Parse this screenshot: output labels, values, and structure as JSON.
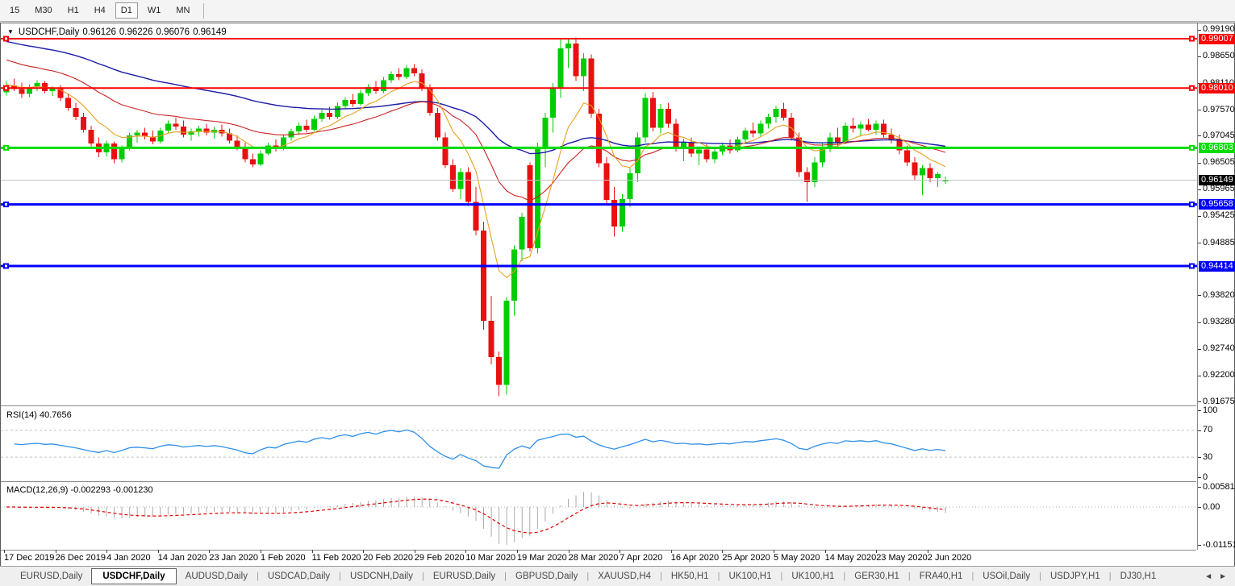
{
  "toolbar": {
    "timeframes": [
      "15",
      "M30",
      "H1",
      "H4",
      "D1",
      "W1",
      "MN"
    ],
    "active_timeframe": "D1"
  },
  "chart_header": {
    "dropdown_icon": "▼",
    "symbol": "USDCHF,Daily",
    "open": "0.96126",
    "high": "0.96226",
    "low": "0.96076",
    "close": "0.96149"
  },
  "rsi_panel": {
    "label": "RSI(14) 40.7656",
    "ticks": [
      "100",
      "70",
      "30",
      "0"
    ],
    "levels": [
      70,
      30
    ]
  },
  "macd_panel": {
    "label": "MACD(12,26,9) -0.002293 -0.001230",
    "ticks": [
      "0.005818",
      "0.00",
      "-0.011514"
    ]
  },
  "tabs": {
    "items": [
      "EURUSD,Daily",
      "USDCHF,Daily",
      "AUDUSD,Daily",
      "USDCAD,Daily",
      "USDCNH,Daily",
      "EURUSD,Daily",
      "GBPUSD,Daily",
      "XAUUSD,H4",
      "HK50,H1",
      "UK100,H1",
      "UK100,H1",
      "GER30,H1",
      "FRA40,H1",
      "USOil,Daily",
      "USDJPY,H1",
      "DJ30,H1"
    ],
    "active_index": 1,
    "nav_left": "◄",
    "nav_right": "►"
  },
  "chart_data": {
    "type": "candlestick",
    "title": "USDCHF,Daily",
    "price_ticks": [
      "0.99190",
      "0.98650",
      "0.98110",
      "0.97570",
      "0.97045",
      "0.96505",
      "0.95965",
      "0.95425",
      "0.94885",
      "0.93820",
      "0.93280",
      "0.92740",
      "0.92200",
      "0.91675"
    ],
    "x_labels": [
      "17 Dec 2019",
      "26 Dec 2019",
      "4 Jan 2020",
      "14 Jan 2020",
      "23 Jan 2020",
      "1 Feb 2020",
      "11 Feb 2020",
      "20 Feb 2020",
      "29 Feb 2020",
      "10 Mar 2020",
      "19 Mar 2020",
      "28 Mar 2020",
      "7 Apr 2020",
      "16 Apr 2020",
      "25 Apr 2020",
      "5 May 2020",
      "14 May 2020",
      "23 May 2020",
      "2 Jun 2020"
    ],
    "hlines": [
      {
        "price": 0.99007,
        "label": "0.99007",
        "color": "#FF0000",
        "type": "resistance",
        "width": 2
      },
      {
        "price": 0.9801,
        "label": "0.98010",
        "color": "#FF0000",
        "type": "resistance",
        "width": 2
      },
      {
        "price": 0.96803,
        "label": "0.96803",
        "color": "#00DC00",
        "type": "pivot",
        "width": 3
      },
      {
        "price": 0.95658,
        "label": "0.95658",
        "color": "#0000FF",
        "type": "support",
        "width": 3
      },
      {
        "price": 0.94414,
        "label": "0.94414",
        "color": "#0000FF",
        "type": "support",
        "width": 3
      }
    ],
    "current_price": {
      "value": 0.96149,
      "label": "0.96149",
      "line_color": "#C0C0C0",
      "label_bg": "#000000"
    },
    "colors": {
      "up": "#00CC00",
      "down": "#E81010",
      "ma_fast_orange": "#E8A020",
      "ma_mid_red": "#CC2222",
      "ma_slow_blue": "#1C1CA8",
      "rsi_line": "#2E8FE8",
      "rsi_level_dash": "#c4c4c4",
      "macd_hist": "#ABABAB",
      "macd_signal": "#E00000"
    },
    "ma": [
      {
        "name": "slow",
        "period": 60,
        "seed": 0.9898,
        "color_key": "ma_slow_blue"
      },
      {
        "name": "mid",
        "period": 25,
        "seed": 0.9862,
        "color_key": "ma_mid_red"
      },
      {
        "name": "fast",
        "period": 8,
        "seed": 0.9808,
        "color_key": "ma_fast_orange"
      }
    ],
    "rsi_period": 14,
    "macd_params": [
      12,
      26,
      9
    ],
    "candles": [
      [
        0.9792,
        0.9815,
        0.9786,
        0.9806
      ],
      [
        0.9806,
        0.982,
        0.9795,
        0.9799
      ],
      [
        0.9799,
        0.9812,
        0.9781,
        0.9789
      ],
      [
        0.9789,
        0.9809,
        0.9783,
        0.9803
      ],
      [
        0.9803,
        0.9817,
        0.9795,
        0.9811
      ],
      [
        0.9811,
        0.9815,
        0.9791,
        0.9795
      ],
      [
        0.9795,
        0.9805,
        0.9785,
        0.9801
      ],
      [
        0.9801,
        0.9807,
        0.9775,
        0.9781
      ],
      [
        0.9781,
        0.979,
        0.9755,
        0.9761
      ],
      [
        0.9761,
        0.9771,
        0.9736,
        0.9743
      ],
      [
        0.9743,
        0.9751,
        0.9711,
        0.9717
      ],
      [
        0.9717,
        0.9725,
        0.9683,
        0.9689
      ],
      [
        0.9689,
        0.9701,
        0.9661,
        0.9671
      ],
      [
        0.9671,
        0.9695,
        0.9663,
        0.9689
      ],
      [
        0.9689,
        0.9693,
        0.9649,
        0.9657
      ],
      [
        0.9657,
        0.9685,
        0.9651,
        0.9679
      ],
      [
        0.9679,
        0.9711,
        0.9675,
        0.9705
      ],
      [
        0.9705,
        0.9717,
        0.9691,
        0.9711
      ],
      [
        0.9711,
        0.9721,
        0.9697,
        0.9703
      ],
      [
        0.9703,
        0.9715,
        0.9687,
        0.9693
      ],
      [
        0.9693,
        0.9721,
        0.9689,
        0.9715
      ],
      [
        0.9715,
        0.9735,
        0.9709,
        0.9729
      ],
      [
        0.9729,
        0.9741,
        0.9717,
        0.9723
      ],
      [
        0.9723,
        0.9735,
        0.9701,
        0.9707
      ],
      [
        0.9707,
        0.9719,
        0.9695,
        0.9713
      ],
      [
        0.9713,
        0.9725,
        0.9703,
        0.9719
      ],
      [
        0.9719,
        0.9729,
        0.9705,
        0.9711
      ],
      [
        0.9711,
        0.9723,
        0.9699,
        0.9717
      ],
      [
        0.9717,
        0.9727,
        0.9703,
        0.9709
      ],
      [
        0.9709,
        0.9719,
        0.9689,
        0.9695
      ],
      [
        0.9695,
        0.9705,
        0.9675,
        0.9681
      ],
      [
        0.9681,
        0.9691,
        0.9651,
        0.9657
      ],
      [
        0.9657,
        0.9669,
        0.9641,
        0.9647
      ],
      [
        0.9647,
        0.9675,
        0.9643,
        0.9669
      ],
      [
        0.9669,
        0.9691,
        0.9665,
        0.9685
      ],
      [
        0.9685,
        0.9697,
        0.9673,
        0.9679
      ],
      [
        0.9679,
        0.9707,
        0.9675,
        0.9701
      ],
      [
        0.9701,
        0.9719,
        0.9695,
        0.9713
      ],
      [
        0.9713,
        0.9731,
        0.9707,
        0.9725
      ],
      [
        0.9725,
        0.9737,
        0.9711,
        0.9717
      ],
      [
        0.9717,
        0.9745,
        0.9713,
        0.9739
      ],
      [
        0.9739,
        0.9757,
        0.9733,
        0.9751
      ],
      [
        0.9751,
        0.9763,
        0.9737,
        0.9743
      ],
      [
        0.9743,
        0.9771,
        0.9739,
        0.9765
      ],
      [
        0.9765,
        0.9783,
        0.9759,
        0.9777
      ],
      [
        0.9777,
        0.9789,
        0.9763,
        0.9769
      ],
      [
        0.9769,
        0.9797,
        0.9765,
        0.9791
      ],
      [
        0.9791,
        0.9809,
        0.9785,
        0.9803
      ],
      [
        0.9803,
        0.9815,
        0.9789,
        0.9795
      ],
      [
        0.9795,
        0.9823,
        0.9791,
        0.9817
      ],
      [
        0.9817,
        0.9835,
        0.9811,
        0.9829
      ],
      [
        0.9829,
        0.9841,
        0.9817,
        0.9823
      ],
      [
        0.9823,
        0.9847,
        0.9819,
        0.9841
      ],
      [
        0.9841,
        0.9849,
        0.9825,
        0.9831
      ],
      [
        0.9831,
        0.9839,
        0.9795,
        0.9801
      ],
      [
        0.9801,
        0.9809,
        0.9745,
        0.9751
      ],
      [
        0.9751,
        0.9761,
        0.9695,
        0.9701
      ],
      [
        0.9701,
        0.9711,
        0.9639,
        0.9645
      ],
      [
        0.9645,
        0.9657,
        0.9591,
        0.9597
      ],
      [
        0.9597,
        0.9639,
        0.9577,
        0.9631
      ],
      [
        0.9631,
        0.9641,
        0.9563,
        0.9571
      ],
      [
        0.9571,
        0.9601,
        0.9503,
        0.9513
      ],
      [
        0.9513,
        0.9531,
        0.9313,
        0.9331
      ],
      [
        0.9331,
        0.9381,
        0.9243,
        0.9257
      ],
      [
        0.9257,
        0.9269,
        0.9178,
        0.9201
      ],
      [
        0.9201,
        0.9379,
        0.9182,
        0.9371
      ],
      [
        0.9371,
        0.9483,
        0.9341,
        0.9475
      ],
      [
        0.9475,
        0.9549,
        0.9451,
        0.9541
      ],
      [
        0.9645,
        0.9651,
        0.9471,
        0.9477
      ],
      [
        0.9477,
        0.9691,
        0.9467,
        0.9681
      ],
      [
        0.9681,
        0.9751,
        0.9641,
        0.9741
      ],
      [
        0.9741,
        0.9811,
        0.9711,
        0.9801
      ],
      [
        0.9801,
        0.9901,
        0.9781,
        0.9881
      ],
      [
        0.9881,
        0.9899,
        0.9841,
        0.9891
      ],
      [
        0.9891,
        0.9903,
        0.9815,
        0.9825
      ],
      [
        0.9825,
        0.9871,
        0.9795,
        0.9861
      ],
      [
        0.9861,
        0.9869,
        0.9741,
        0.9749
      ],
      [
        0.9749,
        0.9759,
        0.9641,
        0.9649
      ],
      [
        0.9649,
        0.9661,
        0.9565,
        0.9575
      ],
      [
        0.9575,
        0.9601,
        0.9501,
        0.9521
      ],
      [
        0.9521,
        0.9587,
        0.9511,
        0.9577
      ],
      [
        0.9577,
        0.9639,
        0.9561,
        0.9629
      ],
      [
        0.9629,
        0.9711,
        0.9611,
        0.9701
      ],
      [
        0.9701,
        0.9791,
        0.9691,
        0.9781
      ],
      [
        0.9781,
        0.9793,
        0.9713,
        0.9721
      ],
      [
        0.9721,
        0.9769,
        0.9709,
        0.9759
      ],
      [
        0.9759,
        0.9771,
        0.9721,
        0.9729
      ],
      [
        0.9729,
        0.9739,
        0.9673,
        0.9681
      ],
      [
        0.9681,
        0.9699,
        0.9653,
        0.9691
      ],
      [
        0.9691,
        0.9701,
        0.9661,
        0.9669
      ],
      [
        0.9669,
        0.9683,
        0.9645,
        0.9677
      ],
      [
        0.9677,
        0.9687,
        0.9651,
        0.9657
      ],
      [
        0.9657,
        0.9679,
        0.9649,
        0.9673
      ],
      [
        0.9673,
        0.9691,
        0.9665,
        0.9685
      ],
      [
        0.9685,
        0.9697,
        0.9669,
        0.9675
      ],
      [
        0.9675,
        0.9703,
        0.9671,
        0.9697
      ],
      [
        0.9697,
        0.9721,
        0.9691,
        0.9715
      ],
      [
        0.9715,
        0.9731,
        0.9701,
        0.9709
      ],
      [
        0.9709,
        0.9735,
        0.9703,
        0.9729
      ],
      [
        0.9729,
        0.9749,
        0.9719,
        0.9743
      ],
      [
        0.9743,
        0.9765,
        0.9731,
        0.9759
      ],
      [
        0.9759,
        0.9771,
        0.9735,
        0.9741
      ],
      [
        0.9741,
        0.9751,
        0.9695,
        0.9701
      ],
      [
        0.9701,
        0.9711,
        0.9621,
        0.9631
      ],
      [
        0.9631,
        0.9641,
        0.9571,
        0.9611
      ],
      [
        0.9611,
        0.9661,
        0.9601,
        0.9651
      ],
      [
        0.9651,
        0.9691,
        0.9641,
        0.9681
      ],
      [
        0.9681,
        0.9711,
        0.9671,
        0.9701
      ],
      [
        0.9701,
        0.9721,
        0.9681,
        0.9691
      ],
      [
        0.9691,
        0.9731,
        0.9687,
        0.9725
      ],
      [
        0.9725,
        0.9741,
        0.9711,
        0.9719
      ],
      [
        0.9719,
        0.9733,
        0.9703,
        0.9727
      ],
      [
        0.9727,
        0.9739,
        0.9713,
        0.9717
      ],
      [
        0.9717,
        0.9735,
        0.9707,
        0.9729
      ],
      [
        0.9729,
        0.9737,
        0.9701,
        0.9707
      ],
      [
        0.9707,
        0.9719,
        0.9689,
        0.9697
      ],
      [
        0.9697,
        0.9707,
        0.9667,
        0.9675
      ],
      [
        0.9675,
        0.9685,
        0.9643,
        0.9651
      ],
      [
        0.9651,
        0.9661,
        0.9615,
        0.9625
      ],
      [
        0.9625,
        0.9645,
        0.9585,
        0.9639
      ],
      [
        0.9639,
        0.9649,
        0.9611,
        0.9619
      ],
      [
        0.9619,
        0.9631,
        0.9601,
        0.9627
      ],
      [
        0.96126,
        0.96226,
        0.96076,
        0.96149
      ]
    ]
  }
}
